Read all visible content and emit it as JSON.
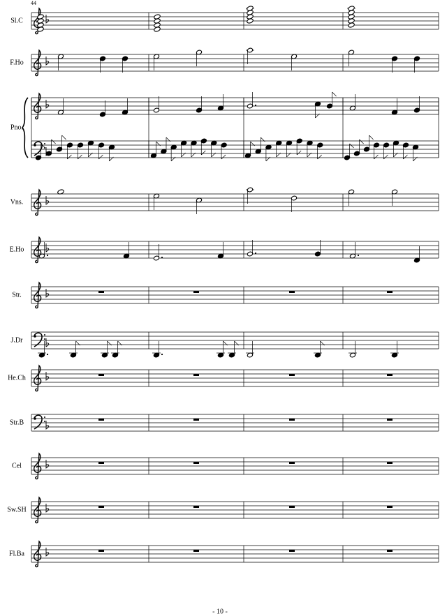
{
  "header": {
    "measure_number": "44"
  },
  "parts": [
    {
      "label": "Sl.C",
      "clefs": [
        "treble"
      ]
    },
    {
      "label": "F.Ho",
      "clefs": [
        "treble"
      ]
    },
    {
      "label": "Pno.",
      "clefs": [
        "treble",
        "bass"
      ]
    },
    {
      "label": "Vns.",
      "clefs": [
        "treble"
      ]
    },
    {
      "label": "E.Ho",
      "clefs": [
        "treble"
      ]
    },
    {
      "label": "Str.",
      "clefs": [
        "treble"
      ]
    },
    {
      "label": "J.Dr",
      "clefs": [
        "bass"
      ]
    },
    {
      "label": "He.Ch",
      "clefs": [
        "treble"
      ]
    },
    {
      "label": "Str.B",
      "clefs": [
        "bass"
      ]
    },
    {
      "label": "Cel",
      "clefs": [
        "treble"
      ]
    },
    {
      "label": "Sw.SH",
      "clefs": [
        "treble"
      ]
    },
    {
      "label": "Fl.Ba",
      "clefs": [
        "treble"
      ]
    }
  ],
  "footer": {
    "page_number": "- 10 -"
  }
}
